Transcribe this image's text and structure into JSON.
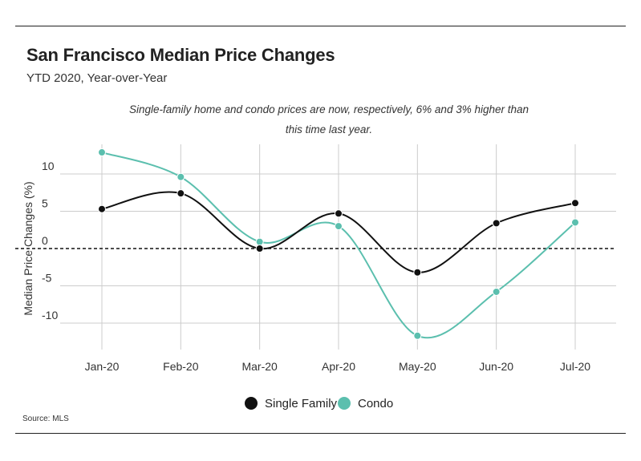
{
  "header": {
    "title": "San Francisco Median Price Changes",
    "subtitle": "YTD 2020, Year-over-Year",
    "annotation": "Single-family home and condo prices are now, respectively, 6%  and 3% higher than this time last year."
  },
  "footer": {
    "source": "Source:  MLS"
  },
  "colors": {
    "single_family": "#111111",
    "condo": "#5bbfae",
    "grid": "#cccccc",
    "zero_line": "#111111"
  },
  "chart_data": {
    "type": "line",
    "categories": [
      "Jan-20",
      "Feb-20",
      "Mar-20",
      "Apr-20",
      "May-20",
      "Jun-20",
      "Jul-20"
    ],
    "series": [
      {
        "name": "Single Family",
        "values": [
          5.3,
          7.4,
          0.0,
          4.7,
          -3.2,
          3.4,
          6.1
        ]
      },
      {
        "name": "Condo",
        "values": [
          12.9,
          9.6,
          0.9,
          3.0,
          -11.7,
          -5.8,
          3.5
        ]
      }
    ],
    "ylabel": "Median Price Changes (%)",
    "yticks": [
      10,
      5,
      0,
      -5,
      -10
    ],
    "ylim": [
      -13.5,
      14
    ],
    "zero_line": "dashed",
    "grid": true,
    "legend": "bottom-center"
  }
}
